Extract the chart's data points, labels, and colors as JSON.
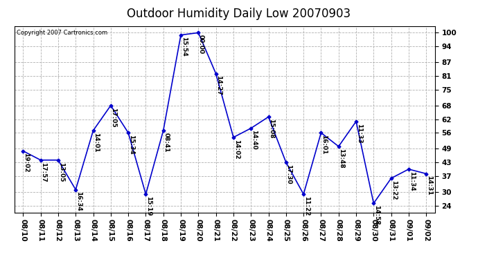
{
  "title": "Outdoor Humidity Daily Low 20070903",
  "copyright": "Copyright 2007 Cartronics.com",
  "x_labels": [
    "08/10",
    "08/11",
    "08/12",
    "08/13",
    "08/14",
    "08/15",
    "08/16",
    "08/17",
    "08/18",
    "08/19",
    "08/20",
    "08/21",
    "08/22",
    "08/23",
    "08/24",
    "08/25",
    "08/26",
    "08/27",
    "08/28",
    "08/29",
    "08/30",
    "08/31",
    "09/01",
    "09/02"
  ],
  "y_values": [
    48,
    44,
    44,
    31,
    57,
    68,
    56,
    29,
    57,
    99,
    100,
    82,
    54,
    58,
    63,
    43,
    29,
    56,
    50,
    61,
    25,
    36,
    40,
    38
  ],
  "time_labels": [
    "19:02",
    "17:57",
    "13:05",
    "16:34",
    "14:01",
    "17:05",
    "15:34",
    "15:19",
    "08:41",
    "15:54",
    "00:00",
    "14:27",
    "14:02",
    "14:40",
    "15:08",
    "17:30",
    "11:22",
    "16:01",
    "13:48",
    "11:33",
    "14:58",
    "13:22",
    "11:34",
    "14:31"
  ],
  "line_color": "#0000cc",
  "marker_color": "#0000cc",
  "background_color": "#ffffff",
  "grid_color": "#b0b0b0",
  "title_fontsize": 12,
  "copyright_fontsize": 6,
  "label_fontsize": 6.5,
  "tick_fontsize": 7.5,
  "y_ticks": [
    24,
    30,
    37,
    43,
    49,
    56,
    62,
    68,
    75,
    81,
    87,
    94,
    100
  ],
  "ylim": [
    21,
    103
  ],
  "border_color": "#000000"
}
